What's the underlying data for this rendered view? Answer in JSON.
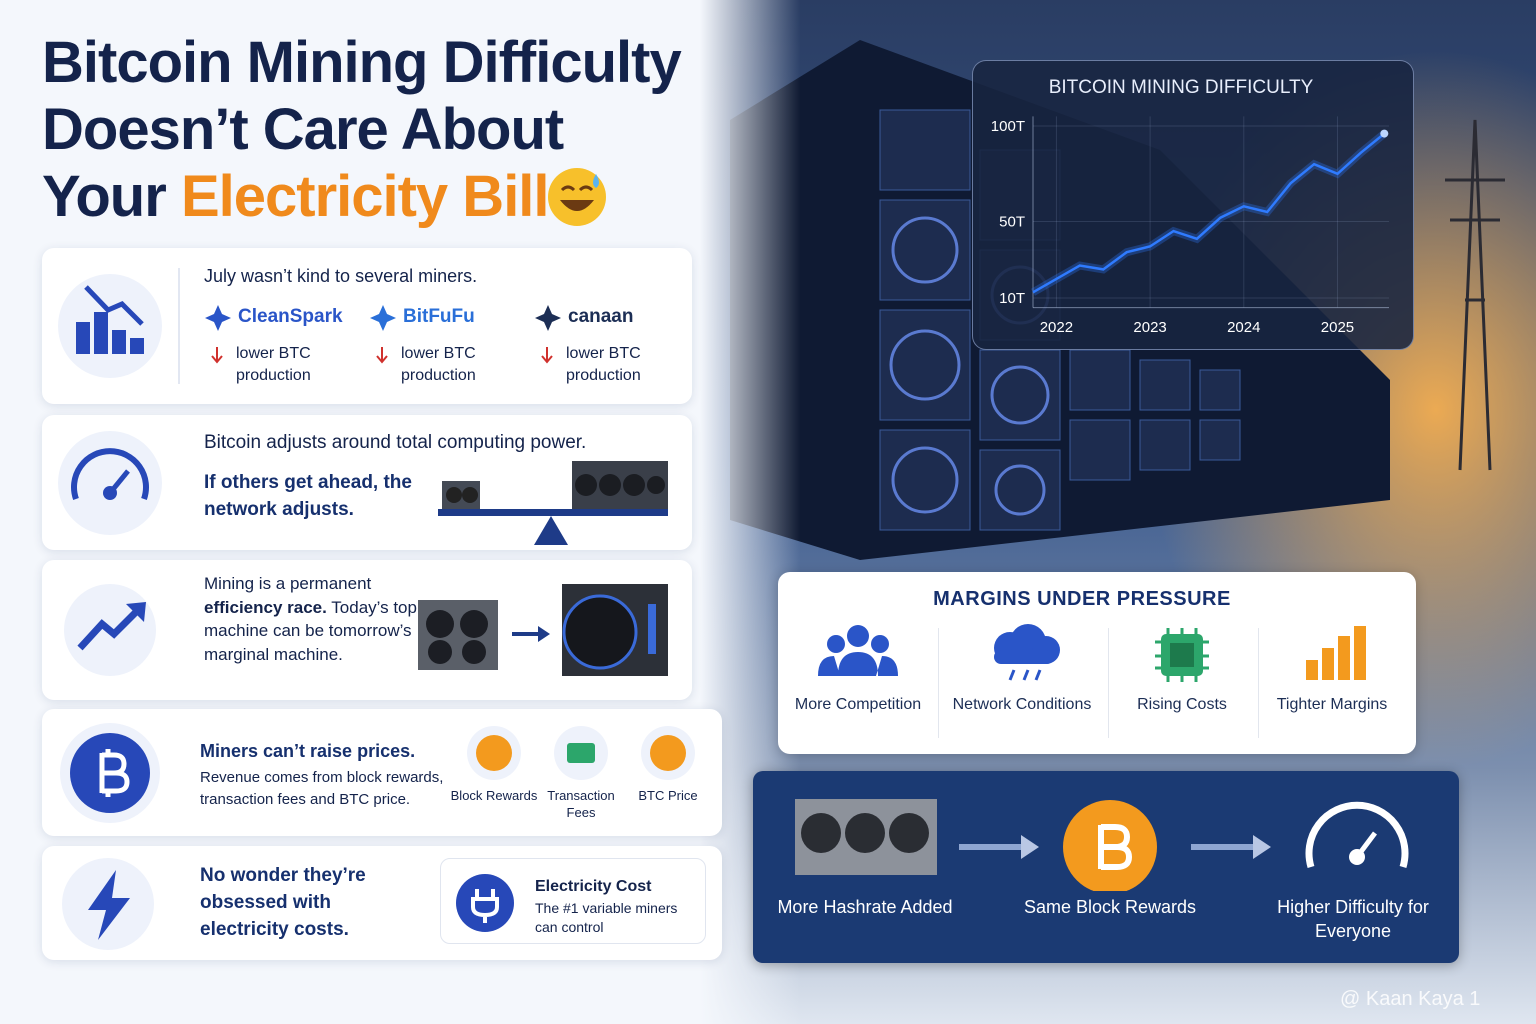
{
  "header": {
    "title_line1": "Bitcoin Mining Difficulty",
    "title_line2": "Doesn’t Care About",
    "title_line3_lead": "Your",
    "title_line3_accent": "Electricity Bill"
  },
  "cards": {
    "miners": {
      "text": "July wasn’t kind to several miners.",
      "companies": [
        {
          "name": "CleanSpark",
          "note": "lower BTC production"
        },
        {
          "name": "BitFuFu",
          "note": "lower BTC production"
        },
        {
          "name": "canaan",
          "note": "lower BTC production"
        }
      ]
    },
    "adjust": {
      "text": "Bitcoin adjusts around total computing power.",
      "emphasis": "If others get ahead, the network adjusts."
    },
    "race": {
      "lead": "Mining is a permanent",
      "emphasis": "efficiency race.",
      "text": "Today’s top machine can be tomorrow’s marginal machine."
    },
    "prices": {
      "heading": "Miners can’t raise prices.",
      "text": "Revenue comes from block rewards, transaction fees and BTC price.",
      "items": [
        "Block Rewards",
        "Transaction Fees",
        "BTC Price"
      ]
    },
    "electricity": {
      "text": "No wonder they’re obsessed with electricity costs.",
      "box_title": "Electricity Cost",
      "box_text": "The #1 variable miners can control"
    }
  },
  "chart_data": {
    "type": "line",
    "title": "BITCOIN MINING DIFFICULTY",
    "x": [
      2021.75,
      2022.0,
      2022.25,
      2022.5,
      2022.75,
      2023.0,
      2023.25,
      2023.5,
      2023.75,
      2024.0,
      2024.25,
      2024.5,
      2024.75,
      2025.0,
      2025.25,
      2025.5
    ],
    "series": [
      {
        "name": "Difficulty",
        "color": "#2f7bff",
        "values": [
          13,
          20,
          27,
          25,
          34,
          37,
          45,
          41,
          52,
          58,
          55,
          70,
          80,
          75,
          86,
          96
        ]
      }
    ],
    "xlim": [
      2021.75,
      2025.55
    ],
    "xticks": [
      2022,
      2023,
      2024,
      2025
    ],
    "ylim": [
      5,
      105
    ],
    "yticks": [
      {
        "value": 10,
        "label": "10T"
      },
      {
        "value": 50,
        "label": "50T"
      },
      {
        "value": 100,
        "label": "100T"
      }
    ],
    "grid": true
  },
  "margins": {
    "title": "MARGINS UNDER PRESSURE",
    "items": [
      "More Competition",
      "Network Conditions",
      "Rising Costs",
      "Tighter Margins"
    ]
  },
  "flow": {
    "steps": [
      "More Hashrate Added",
      "Same Block Rewards",
      "Higher Difficulty for Everyone"
    ]
  },
  "watermark": "@ Kaan Kaya 1"
}
